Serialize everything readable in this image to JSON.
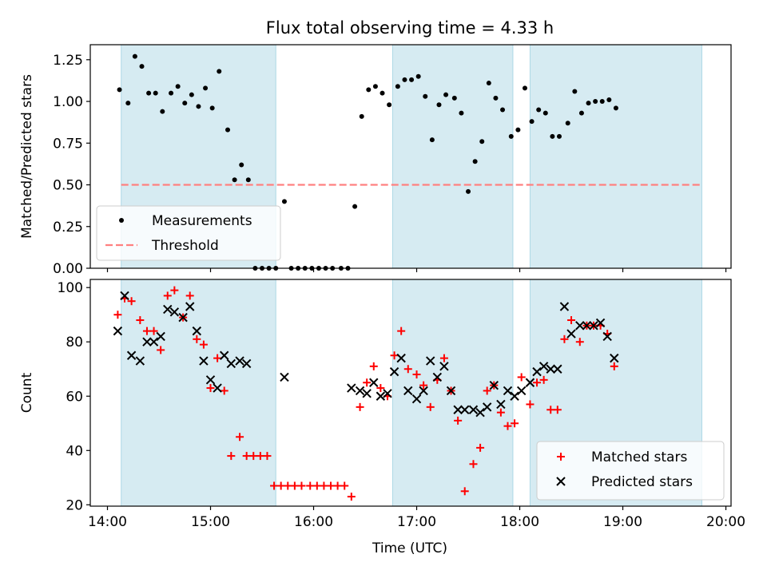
{
  "figure": {
    "title": "Flux total observing time = 4.33 h",
    "xlabel": "Time (UTC)"
  },
  "colors": {
    "band": "#add8e6",
    "threshold": "#ff8080",
    "matched": "#ff0000",
    "predicted": "#000000",
    "measurement": "#000000"
  },
  "chart_data": [
    {
      "type": "scatter",
      "ylabel": "Matched/Predicted stars",
      "xlim": [
        "13:50",
        "20:03"
      ],
      "ylim": [
        0,
        1.34
      ],
      "grid": false,
      "legend_position": "lower-left",
      "x_ticks": [
        "14:00",
        "15:00",
        "16:00",
        "17:00",
        "18:00",
        "19:00",
        "20:00"
      ],
      "y_ticks": [
        "0.00",
        "0.25",
        "0.50",
        "0.75",
        "1.00",
        "1.25"
      ],
      "shaded_ranges": [
        [
          "14:08",
          "15:38"
        ],
        [
          "16:46",
          "17:56"
        ],
        [
          "18:06",
          "19:46"
        ]
      ],
      "threshold": {
        "name": "Threshold",
        "value": 0.5,
        "x_range": [
          "14:08",
          "19:46"
        ]
      },
      "series": [
        {
          "name": "Measurements",
          "marker": "dot",
          "points": [
            [
              "14:07",
              1.07
            ],
            [
              "14:12",
              0.99
            ],
            [
              "14:16",
              1.27
            ],
            [
              "14:20",
              1.21
            ],
            [
              "14:24",
              1.05
            ],
            [
              "14:28",
              1.05
            ],
            [
              "14:32",
              0.94
            ],
            [
              "14:37",
              1.05
            ],
            [
              "14:41",
              1.09
            ],
            [
              "14:45",
              0.99
            ],
            [
              "14:49",
              1.04
            ],
            [
              "14:53",
              0.97
            ],
            [
              "14:57",
              1.08
            ],
            [
              "15:01",
              0.96
            ],
            [
              "15:05",
              1.18
            ],
            [
              "15:10",
              0.83
            ],
            [
              "15:14",
              0.53
            ],
            [
              "15:18",
              0.62
            ],
            [
              "15:22",
              0.53
            ],
            [
              "15:26",
              0.0
            ],
            [
              "15:30",
              0.0
            ],
            [
              "15:34",
              0.0
            ],
            [
              "15:38",
              0.0
            ],
            [
              "15:43",
              0.4
            ],
            [
              "15:47",
              0.0
            ],
            [
              "15:51",
              0.0
            ],
            [
              "15:55",
              0.0
            ],
            [
              "15:59",
              0.0
            ],
            [
              "16:03",
              0.0
            ],
            [
              "16:07",
              0.0
            ],
            [
              "16:11",
              0.0
            ],
            [
              "16:16",
              0.0
            ],
            [
              "16:20",
              0.0
            ],
            [
              "16:24",
              0.37
            ],
            [
              "16:28",
              0.91
            ],
            [
              "16:32",
              1.07
            ],
            [
              "16:36",
              1.09
            ],
            [
              "16:40",
              1.05
            ],
            [
              "16:44",
              0.98
            ],
            [
              "16:49",
              1.09
            ],
            [
              "16:53",
              1.13
            ],
            [
              "16:57",
              1.13
            ],
            [
              "17:01",
              1.15
            ],
            [
              "17:05",
              1.03
            ],
            [
              "17:09",
              0.77
            ],
            [
              "17:13",
              0.98
            ],
            [
              "17:17",
              1.04
            ],
            [
              "17:22",
              1.02
            ],
            [
              "17:26",
              0.93
            ],
            [
              "17:30",
              0.46
            ],
            [
              "17:34",
              0.64
            ],
            [
              "17:38",
              0.76
            ],
            [
              "17:42",
              1.11
            ],
            [
              "17:46",
              1.02
            ],
            [
              "17:50",
              0.95
            ],
            [
              "17:55",
              0.79
            ],
            [
              "17:59",
              0.83
            ],
            [
              "18:03",
              1.08
            ],
            [
              "18:07",
              0.88
            ],
            [
              "18:11",
              0.95
            ],
            [
              "18:15",
              0.93
            ],
            [
              "18:19",
              0.79
            ],
            [
              "18:23",
              0.79
            ],
            [
              "18:28",
              0.87
            ],
            [
              "18:32",
              1.06
            ],
            [
              "18:36",
              0.93
            ],
            [
              "18:40",
              0.99
            ],
            [
              "18:44",
              1.0
            ],
            [
              "18:48",
              1.0
            ],
            [
              "18:52",
              1.01
            ],
            [
              "18:56",
              0.96
            ]
          ]
        }
      ]
    },
    {
      "type": "scatter",
      "ylabel": "Count",
      "xlim": [
        "13:50",
        "20:03"
      ],
      "ylim": [
        19.5,
        103
      ],
      "grid": false,
      "legend_position": "lower-right",
      "x_ticks": [
        "14:00",
        "15:00",
        "16:00",
        "17:00",
        "18:00",
        "19:00",
        "20:00"
      ],
      "y_ticks": [
        "20",
        "40",
        "60",
        "80",
        "100"
      ],
      "shaded_ranges": [
        [
          "14:08",
          "15:38"
        ],
        [
          "16:46",
          "17:56"
        ],
        [
          "18:06",
          "19:46"
        ]
      ],
      "series": [
        {
          "name": "Matched stars",
          "marker": "plus",
          "points": [
            [
              "14:06",
              90
            ],
            [
              "14:10",
              96
            ],
            [
              "14:14",
              95
            ],
            [
              "14:19",
              88
            ],
            [
              "14:23",
              84
            ],
            [
              "14:27",
              84
            ],
            [
              "14:31",
              77
            ],
            [
              "14:35",
              97
            ],
            [
              "14:39",
              99
            ],
            [
              "14:44",
              89
            ],
            [
              "14:48",
              97
            ],
            [
              "14:52",
              81
            ],
            [
              "14:56",
              79
            ],
            [
              "15:00",
              63
            ],
            [
              "15:04",
              74
            ],
            [
              "15:08",
              62
            ],
            [
              "15:12",
              38
            ],
            [
              "15:17",
              45
            ],
            [
              "15:21",
              38
            ],
            [
              "15:25",
              38
            ],
            [
              "15:29",
              38
            ],
            [
              "15:33",
              38
            ],
            [
              "15:37",
              27
            ],
            [
              "15:41",
              27
            ],
            [
              "15:45",
              27
            ],
            [
              "15:49",
              27
            ],
            [
              "15:53",
              27
            ],
            [
              "15:58",
              27
            ],
            [
              "16:02",
              27
            ],
            [
              "16:06",
              27
            ],
            [
              "16:10",
              27
            ],
            [
              "16:14",
              27
            ],
            [
              "16:18",
              27
            ],
            [
              "16:22",
              23
            ],
            [
              "16:27",
              56
            ],
            [
              "16:31",
              65
            ],
            [
              "16:35",
              71
            ],
            [
              "16:39",
              63
            ],
            [
              "16:43",
              60
            ],
            [
              "16:47",
              75
            ],
            [
              "16:51",
              84
            ],
            [
              "16:55",
              70
            ],
            [
              "17:00",
              68
            ],
            [
              "17:04",
              64
            ],
            [
              "17:08",
              56
            ],
            [
              "17:12",
              66
            ],
            [
              "17:16",
              74
            ],
            [
              "17:20",
              62
            ],
            [
              "17:24",
              51
            ],
            [
              "17:28",
              25
            ],
            [
              "17:33",
              35
            ],
            [
              "17:37",
              41
            ],
            [
              "17:41",
              62
            ],
            [
              "17:45",
              64
            ],
            [
              "17:49",
              54
            ],
            [
              "17:53",
              49
            ],
            [
              "17:57",
              50
            ],
            [
              "18:01",
              67
            ],
            [
              "18:06",
              57
            ],
            [
              "18:10",
              65
            ],
            [
              "18:14",
              66
            ],
            [
              "18:18",
              55
            ],
            [
              "18:22",
              55
            ],
            [
              "18:26",
              81
            ],
            [
              "18:30",
              88
            ],
            [
              "18:35",
              80
            ],
            [
              "18:39",
              86
            ],
            [
              "18:43",
              86
            ],
            [
              "18:47",
              86
            ],
            [
              "18:51",
              83
            ],
            [
              "18:55",
              71
            ]
          ]
        },
        {
          "name": "Predicted stars",
          "marker": "x",
          "points": [
            [
              "14:06",
              84
            ],
            [
              "14:10",
              97
            ],
            [
              "14:14",
              75
            ],
            [
              "14:19",
              73
            ],
            [
              "14:23",
              80
            ],
            [
              "14:27",
              80
            ],
            [
              "14:31",
              82
            ],
            [
              "14:35",
              92
            ],
            [
              "14:39",
              91
            ],
            [
              "14:44",
              89
            ],
            [
              "14:48",
              93
            ],
            [
              "14:52",
              84
            ],
            [
              "14:56",
              73
            ],
            [
              "15:00",
              66
            ],
            [
              "15:04",
              63
            ],
            [
              "15:08",
              75
            ],
            [
              "15:12",
              72
            ],
            [
              "15:17",
              73
            ],
            [
              "15:21",
              72
            ],
            [
              "15:43",
              67
            ],
            [
              "16:22",
              63
            ],
            [
              "16:27",
              62
            ],
            [
              "16:31",
              61
            ],
            [
              "16:35",
              65
            ],
            [
              "16:39",
              60
            ],
            [
              "16:43",
              61
            ],
            [
              "16:47",
              69
            ],
            [
              "16:51",
              74
            ],
            [
              "16:55",
              62
            ],
            [
              "17:00",
              59
            ],
            [
              "17:04",
              62
            ],
            [
              "17:08",
              73
            ],
            [
              "17:12",
              67
            ],
            [
              "17:16",
              71
            ],
            [
              "17:20",
              62
            ],
            [
              "17:24",
              55
            ],
            [
              "17:28",
              55
            ],
            [
              "17:33",
              55
            ],
            [
              "17:37",
              54
            ],
            [
              "17:41",
              56
            ],
            [
              "17:45",
              64
            ],
            [
              "17:49",
              57
            ],
            [
              "17:53",
              62
            ],
            [
              "17:57",
              60
            ],
            [
              "18:01",
              62
            ],
            [
              "18:06",
              65
            ],
            [
              "18:10",
              69
            ],
            [
              "18:14",
              71
            ],
            [
              "18:18",
              70
            ],
            [
              "18:22",
              70
            ],
            [
              "18:26",
              93
            ],
            [
              "18:30",
              83
            ],
            [
              "18:35",
              86
            ],
            [
              "18:39",
              86
            ],
            [
              "18:43",
              86
            ],
            [
              "18:47",
              87
            ],
            [
              "18:51",
              82
            ],
            [
              "18:55",
              74
            ]
          ]
        }
      ]
    }
  ]
}
